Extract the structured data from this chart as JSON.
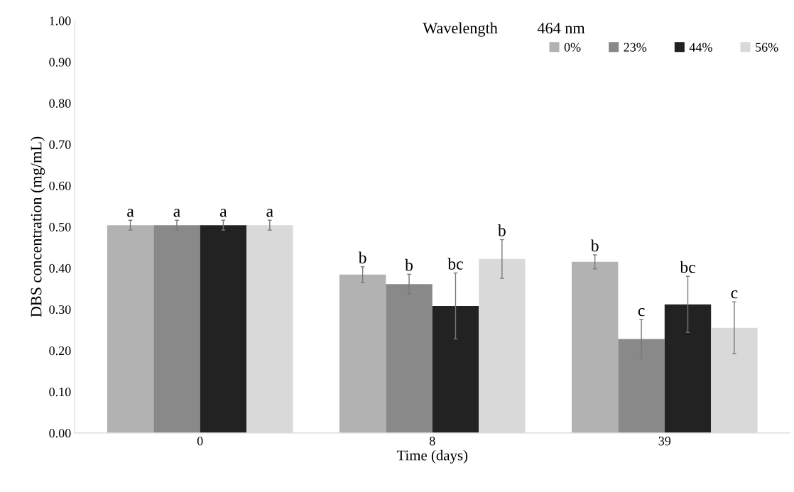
{
  "chart_data": {
    "type": "bar",
    "title": "Wavelength          464 nm",
    "xlabel": "Time (days)",
    "ylabel": "DBS concentration (mg/mL)",
    "categories": [
      "0",
      "8",
      "39"
    ],
    "series": [
      {
        "name": "0%",
        "color": "#b2b2b2",
        "values": [
          0.504,
          0.384,
          0.415
        ],
        "errors": [
          0.012,
          0.019,
          0.017
        ],
        "value_labels": [
          "a",
          "b",
          "b"
        ]
      },
      {
        "name": "23%",
        "color": "#898989",
        "values": [
          0.504,
          0.361,
          0.228
        ],
        "errors": [
          0.012,
          0.024,
          0.047
        ],
        "value_labels": [
          "a",
          "b",
          "c"
        ]
      },
      {
        "name": "44%",
        "color": "#222222",
        "values": [
          0.504,
          0.308,
          0.312
        ],
        "errors": [
          0.012,
          0.08,
          0.068
        ],
        "value_labels": [
          "a",
          "bc",
          "bc"
        ]
      },
      {
        "name": "56%",
        "color": "#d9d9d9",
        "values": [
          0.504,
          0.422,
          0.255
        ],
        "errors": [
          0.012,
          0.047,
          0.063
        ],
        "value_labels": [
          "a",
          "b",
          "c"
        ]
      }
    ],
    "ylim": [
      0,
      1
    ],
    "yticks": [
      {
        "value": 0,
        "label": "0.00"
      },
      {
        "value": 0.1,
        "label": "0.10"
      },
      {
        "value": 0.2,
        "label": "0.20"
      },
      {
        "value": 0.3,
        "label": "0.30"
      },
      {
        "value": 0.4,
        "label": "0.40"
      },
      {
        "value": 0.5,
        "label": "0.50"
      },
      {
        "value": 0.6,
        "label": "0.60"
      },
      {
        "value": 0.7,
        "label": "0.70"
      },
      {
        "value": 0.8,
        "label": "0.80"
      },
      {
        "value": 0.9,
        "label": "0.90"
      },
      {
        "value": 1,
        "label": "1.00"
      }
    ],
    "grid": false,
    "legend": "top right"
  }
}
